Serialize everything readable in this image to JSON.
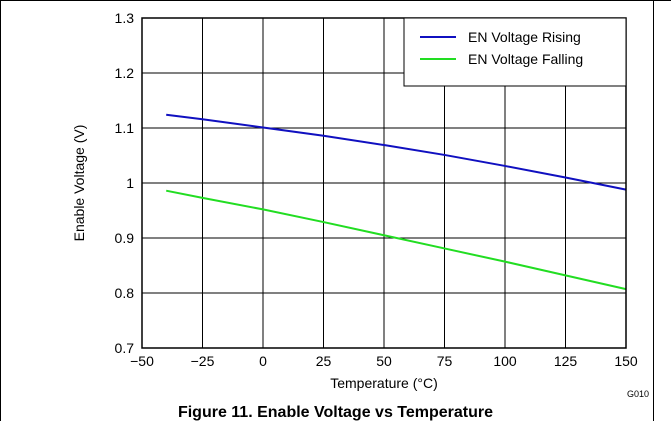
{
  "figure": {
    "caption": "Figure 11. Enable Voltage vs Temperature",
    "code": "G010"
  },
  "chart_data": {
    "type": "line",
    "title": "",
    "xlabel": "Temperature (°C)",
    "ylabel": "Enable Voltage (V)",
    "xlim": [
      -50,
      150
    ],
    "ylim": [
      0.7,
      1.3
    ],
    "x_ticks": [
      -50,
      -25,
      0,
      25,
      50,
      75,
      100,
      125,
      150
    ],
    "x_tick_labels": [
      "−50",
      "−25",
      "0",
      "25",
      "50",
      "75",
      "100",
      "125",
      "150"
    ],
    "y_ticks": [
      0.7,
      0.8,
      0.9,
      1.0,
      1.1,
      1.2,
      1.3
    ],
    "y_tick_labels": [
      "0.7",
      "0.8",
      "0.9",
      "1",
      "1.1",
      "1.2",
      "1.3"
    ],
    "grid": true,
    "legend_position": "top-right",
    "series": [
      {
        "name": "EN Voltage Rising",
        "color": "#1010c0",
        "x": [
          -40,
          -25,
          0,
          25,
          50,
          75,
          100,
          125,
          150
        ],
        "values": [
          1.124,
          1.116,
          1.101,
          1.086,
          1.069,
          1.051,
          1.031,
          1.01,
          0.988
        ]
      },
      {
        "name": "EN Voltage Falling",
        "color": "#22dd22",
        "x": [
          -40,
          -25,
          0,
          25,
          50,
          75,
          100,
          125,
          150
        ],
        "values": [
          0.986,
          0.973,
          0.952,
          0.929,
          0.905,
          0.881,
          0.857,
          0.832,
          0.807
        ]
      }
    ]
  }
}
